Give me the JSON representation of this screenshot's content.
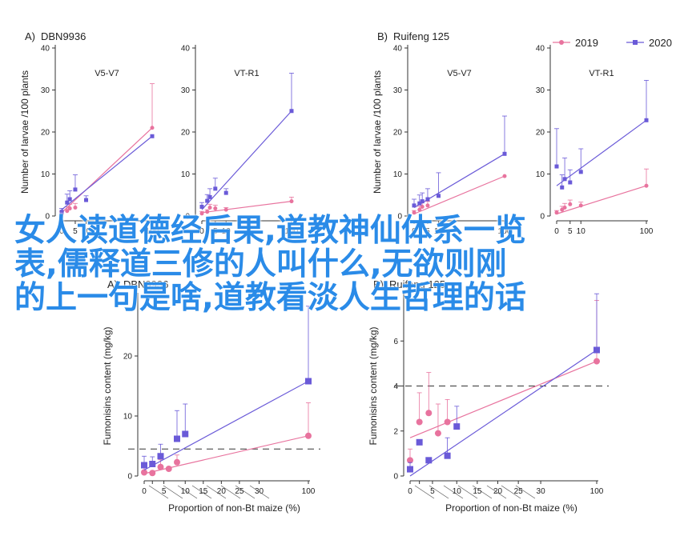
{
  "legend": {
    "items": [
      {
        "label": "2019",
        "color": "#e8739e"
      },
      {
        "label": "2020",
        "color": "#6a5ad8"
      }
    ],
    "placement": "top-right"
  },
  "colors": {
    "s2019": "#e8739e",
    "s2020": "#6a5ad8",
    "overlay_text": "#2a8be8"
  },
  "overlay": {
    "lines": [
      "女人读道德经后果,道教神仙体系一览",
      "表,儒释道三修的人叫什么,无欲则刚",
      "的上一句是啥,道教看淡人生哲理的话"
    ]
  },
  "chart_data": [
    {
      "type": "scatter",
      "panel": "A",
      "title": "DBN9936",
      "subtitle": "V5-V7",
      "ylabel": "Number of larvae /100 plants",
      "show_ylabel": true,
      "ylim": [
        0,
        40
      ],
      "yticks": [
        0,
        10,
        20,
        30,
        40
      ],
      "xticks": [
        0,
        5,
        10,
        100
      ],
      "xticklabels": [
        "0",
        "5",
        "10",
        "100"
      ],
      "series": [
        {
          "name": "2019",
          "x": [
            0,
            2,
            3,
            5,
            100
          ],
          "y": [
            0.5,
            1.2,
            1.8,
            2.0,
            21
          ],
          "yerr": [
            0.5,
            1.0,
            1.0,
            1.0,
            10.5
          ],
          "fit": [
            [
              0,
              0.8
            ],
            [
              100,
              21
            ]
          ]
        },
        {
          "name": "2020",
          "x": [
            0,
            2,
            3,
            5,
            10,
            100
          ],
          "y": [
            1.0,
            3.2,
            4.0,
            6.3,
            3.8,
            19
          ],
          "yerr": [
            0.8,
            2.0,
            2.0,
            3.5,
            1.0,
            0
          ],
          "fit": [
            [
              0,
              1.5
            ],
            [
              100,
              19
            ]
          ]
        }
      ]
    },
    {
      "type": "scatter",
      "panel": "",
      "title": "",
      "subtitle": "VT-R1",
      "ylabel": "",
      "show_ylabel": false,
      "ylim": [
        0,
        40
      ],
      "yticks": [
        0,
        10,
        20,
        30,
        40
      ],
      "xticks": [
        0,
        5,
        10,
        100
      ],
      "xticklabels": [
        "0",
        "5",
        "10",
        "100"
      ],
      "series": [
        {
          "name": "2019",
          "x": [
            0,
            2,
            3,
            5,
            10,
            100
          ],
          "y": [
            0.6,
            1.0,
            2.0,
            1.8,
            1.5,
            3.5
          ],
          "yerr": [
            0.5,
            0.5,
            0.8,
            0.8,
            0.5,
            1.0
          ],
          "fit": [
            [
              0,
              0.8
            ],
            [
              100,
              3.5
            ]
          ]
        },
        {
          "name": "2020",
          "x": [
            0,
            2,
            3,
            5,
            10,
            100
          ],
          "y": [
            2.2,
            3.6,
            4.5,
            6.5,
            5.5,
            25
          ],
          "yerr": [
            1.0,
            1.5,
            2.0,
            2.5,
            1.0,
            9
          ],
          "fit": [
            [
              0,
              1.5
            ],
            [
              100,
              25
            ]
          ]
        }
      ]
    },
    {
      "type": "scatter",
      "panel": "B",
      "title": "Ruifeng 125",
      "subtitle": "V5-V7",
      "ylabel": "Number of larvae /100 plants",
      "show_ylabel": true,
      "ylim": [
        0,
        40
      ],
      "yticks": [
        0,
        10,
        20,
        30,
        40
      ],
      "xticks": [
        0,
        5,
        10,
        100
      ],
      "xticklabels": [
        "0",
        "5",
        "10",
        "100"
      ],
      "series": [
        {
          "name": "2019",
          "x": [
            0,
            2,
            3,
            5,
            100
          ],
          "y": [
            0.8,
            1.5,
            2.2,
            2.5,
            9.5
          ],
          "yerr": [
            0.5,
            0.8,
            1.0,
            1.0,
            0
          ],
          "fit": [
            [
              0,
              0.5
            ],
            [
              100,
              9.5
            ]
          ]
        },
        {
          "name": "2020",
          "x": [
            0,
            2,
            3,
            5,
            10,
            100
          ],
          "y": [
            2.5,
            3.0,
            3.5,
            4.0,
            4.8,
            14.8
          ],
          "yerr": [
            1.5,
            2.0,
            2.0,
            2.5,
            5.5,
            9
          ],
          "fit": [
            [
              0,
              2.0
            ],
            [
              100,
              14.8
            ]
          ]
        }
      ]
    },
    {
      "type": "scatter",
      "panel": "",
      "title": "",
      "subtitle": "VT-R1",
      "ylabel": "",
      "show_ylabel": false,
      "ylim": [
        0,
        40
      ],
      "yticks": [
        0,
        10,
        20,
        30,
        40
      ],
      "xticks": [
        0,
        5,
        10,
        100
      ],
      "xticklabels": [
        "0",
        "5",
        "10",
        "100"
      ],
      "series": [
        {
          "name": "2019",
          "x": [
            0,
            2,
            3,
            5,
            10,
            100
          ],
          "y": [
            0.8,
            1.5,
            2.0,
            2.8,
            2.5,
            7.2
          ],
          "yerr": [
            0.5,
            0.8,
            1.0,
            1.0,
            0.8,
            4
          ],
          "fit": [
            [
              0,
              0.5
            ],
            [
              100,
              7.2
            ]
          ]
        },
        {
          "name": "2020",
          "x": [
            0,
            2,
            3,
            5,
            10,
            100
          ],
          "y": [
            11.8,
            6.8,
            8.8,
            8.0,
            10.5,
            22.8
          ],
          "yerr": [
            9,
            3,
            5,
            3,
            5.5,
            9.5
          ],
          "fit": [
            [
              0,
              7.2
            ],
            [
              100,
              22.8
            ]
          ]
        }
      ]
    },
    {
      "type": "scatter",
      "panel": "A",
      "title": "DBN9936",
      "subtitle": "",
      "ylabel": "Fumonisins content (mg/kg)",
      "show_ylabel": true,
      "xlabel": "Proportion of non-Bt maize (%)",
      "ylim": [
        0,
        30
      ],
      "yticks": [
        0,
        10,
        20
      ],
      "xticks": [
        0,
        2,
        5,
        10,
        15,
        20,
        25,
        30,
        100
      ],
      "xticklabels": [
        "0",
        "",
        "5",
        "10",
        "15",
        "20",
        "25",
        "30",
        "100"
      ],
      "threshold": 4.5,
      "series": [
        {
          "name": "2019",
          "x": [
            0,
            2,
            4,
            6,
            8,
            100
          ],
          "y": [
            0.6,
            0.5,
            1.5,
            1.2,
            2.3,
            6.7
          ],
          "yerr": [
            0.8,
            0,
            1.2,
            0,
            1.2,
            5.5
          ],
          "fit": [
            [
              0,
              0.4
            ],
            [
              100,
              6.7
            ]
          ]
        },
        {
          "name": "2020",
          "x": [
            0,
            2,
            4,
            8,
            10,
            100
          ],
          "y": [
            1.8,
            2.0,
            3.3,
            6.2,
            7.0,
            15.8
          ],
          "yerr": [
            1.5,
            1.2,
            2.0,
            4.7,
            5.0,
            12.5
          ],
          "fit": [
            [
              0,
              1.0
            ],
            [
              100,
              15.8
            ]
          ]
        }
      ]
    },
    {
      "type": "scatter",
      "panel": "B",
      "title": "Ruifeng 125",
      "subtitle": "",
      "ylabel": "Fumonisins content (mg/kg)",
      "show_ylabel": true,
      "xlabel": "Proportion of non-Bt maize (%)",
      "ylim": [
        0,
        8
      ],
      "yticks": [
        0,
        2,
        4,
        6
      ],
      "xticks": [
        0,
        2,
        5,
        10,
        15,
        20,
        25,
        30,
        100
      ],
      "xticklabels": [
        "0",
        "",
        "5",
        "10",
        "15",
        "20",
        "25",
        "30",
        "100"
      ],
      "threshold": 4,
      "series": [
        {
          "name": "2019",
          "x": [
            0,
            2,
            4,
            6,
            8,
            100
          ],
          "y": [
            0.7,
            2.4,
            2.8,
            1.9,
            2.4,
            5.1
          ],
          "yerr": [
            0.5,
            1.3,
            1.8,
            1.3,
            1.0,
            2.7
          ],
          "fit": [
            [
              0,
              1.7
            ],
            [
              100,
              5.1
            ]
          ]
        },
        {
          "name": "2020",
          "x": [
            0,
            2,
            4,
            8,
            10,
            100
          ],
          "y": [
            0.3,
            1.5,
            0.7,
            0.9,
            2.2,
            5.6
          ],
          "yerr": [
            0.3,
            0,
            0,
            0.8,
            0.9,
            2.5
          ],
          "fit": [
            [
              0,
              0
            ],
            [
              100,
              5.6
            ]
          ]
        }
      ]
    }
  ]
}
